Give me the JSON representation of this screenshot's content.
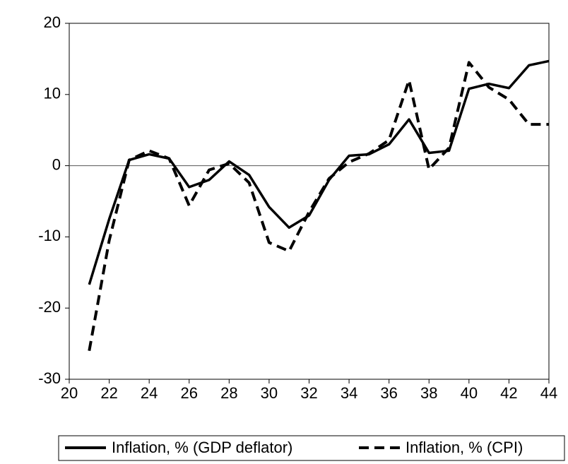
{
  "chart_data": {
    "type": "line",
    "x": [
      21,
      22,
      23,
      24,
      25,
      26,
      27,
      28,
      29,
      30,
      31,
      32,
      33,
      34,
      35,
      36,
      37,
      38,
      39,
      40,
      41,
      42,
      43,
      44
    ],
    "series": [
      {
        "name": "Inflation, % (GDP deflator)",
        "color": "#000000",
        "dash": false,
        "values": [
          -16.7,
          -7.5,
          0.8,
          1.6,
          1.0,
          -3.0,
          -2.0,
          0.6,
          -1.3,
          -5.8,
          -8.7,
          -7.0,
          -2.0,
          1.4,
          1.6,
          3.0,
          6.5,
          1.8,
          2.1,
          10.8,
          11.5,
          10.9,
          14.1,
          14.7
        ]
      },
      {
        "name": "Inflation, % (CPI)",
        "color": "#000000",
        "dash": true,
        "values": [
          -26.0,
          -10.5,
          0.8,
          2.1,
          1.0,
          -5.6,
          -0.6,
          0.3,
          -2.4,
          -10.8,
          -12.0,
          -6.5,
          -1.8,
          0.5,
          1.7,
          3.6,
          12.0,
          -0.5,
          2.5,
          14.5,
          11.0,
          9.3,
          5.8,
          5.8
        ]
      }
    ],
    "xlim": [
      20,
      44
    ],
    "xticks": [
      20,
      22,
      24,
      26,
      28,
      30,
      32,
      34,
      36,
      38,
      40,
      42,
      44
    ],
    "ylim": [
      -30,
      20
    ],
    "yticks": [
      -30,
      -20,
      -10,
      0,
      10,
      20
    ],
    "zero_line": true,
    "grid": false,
    "legend": "bottom"
  }
}
